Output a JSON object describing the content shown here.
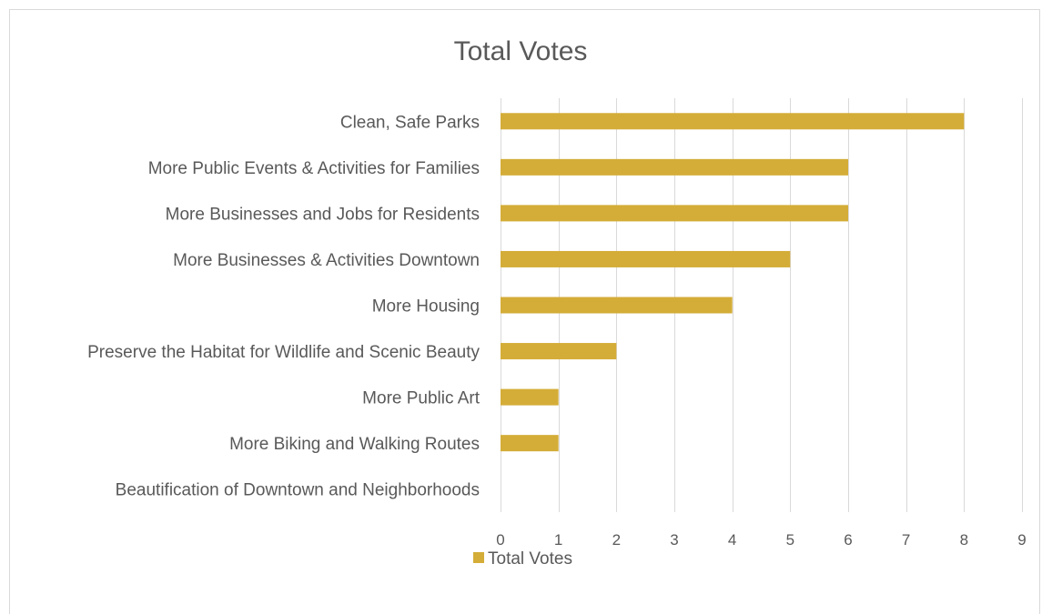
{
  "chart_data": {
    "type": "bar",
    "orientation": "horizontal",
    "title": "Total Votes",
    "categories": [
      "Clean, Safe Parks",
      "More Public Events & Activities for Families",
      "More Businesses and Jobs for Residents",
      "More Businesses & Activities Downtown",
      "More Housing",
      "Preserve the Habitat for Wildlife and Scenic Beauty",
      "More Public Art",
      "More Biking and Walking Routes",
      "Beautification of Downtown and Neighborhoods"
    ],
    "series": [
      {
        "name": "Total Votes",
        "values": [
          8,
          6,
          6,
          5,
          4,
          2,
          1,
          1,
          0
        ]
      }
    ],
    "xlim": [
      0,
      9
    ],
    "xticks": [
      "0",
      "1",
      "2",
      "3",
      "4",
      "5",
      "6",
      "7",
      "8",
      "9"
    ],
    "grid": true,
    "legend": "bottom",
    "colors": {
      "bar": "#d4ad38",
      "grid": "#d9d9d9",
      "text": "#595959",
      "border": "#d9d9d9"
    }
  }
}
